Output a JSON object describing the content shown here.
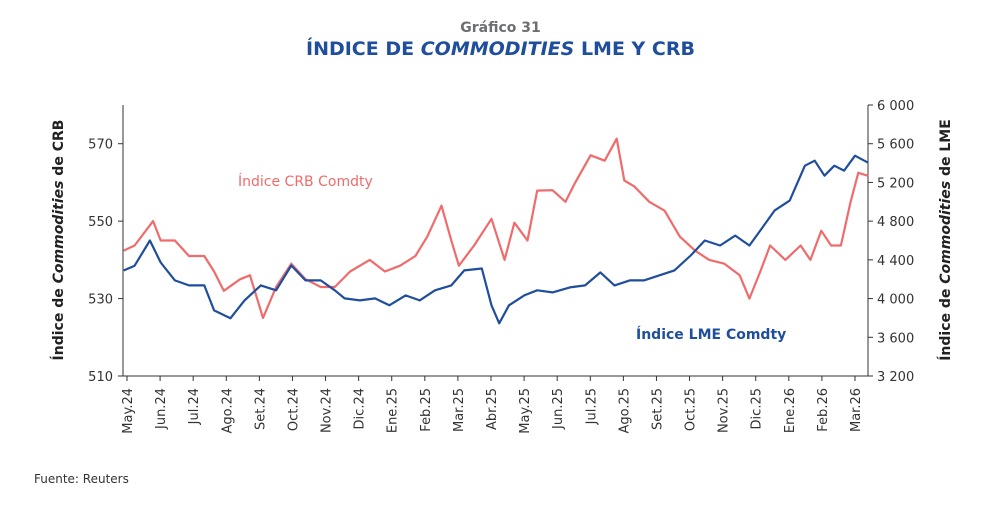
{
  "title": {
    "prefix": "Gráfico 31",
    "main_a": "ÍNDICE DE ",
    "main_italic": "COMMODITIES",
    "main_b": " LME Y CRB"
  },
  "source": "Fuente: Reuters",
  "chart_data": {
    "type": "line",
    "title": "ÍNDICE DE COMMODITIES LME Y CRB",
    "x_ticks": [
      "May.24",
      "Jun.24",
      "Jul.24",
      "Ago.24",
      "Set.24",
      "Oct.24",
      "Nov.24",
      "Dic.24",
      "Ene.25",
      "Feb.25",
      "Mar.25",
      "Abr.25",
      "May.25",
      "Jun.25",
      "Jul.25",
      "Ago.25",
      "Set.25",
      "Oct.25",
      "Nov.25",
      "Dic.25",
      "Ene.26",
      "Feb.26",
      "Mar.26"
    ],
    "xlim": [
      "2024-04-28",
      "2026-03-13"
    ],
    "y_left": {
      "label_a": "Índice de ",
      "label_italic": "Commodities",
      "label_b": " de CRB",
      "ylim": [
        510,
        580
      ],
      "ticks": [
        "510",
        "530",
        "550",
        "570"
      ],
      "tick_values": [
        510,
        530,
        550,
        570
      ]
    },
    "y_right": {
      "label_a": "Índice de ",
      "label_italic": "Commodities",
      "label_b": " de LME",
      "ylim": [
        3200,
        6000
      ],
      "ticks": [
        "3 200",
        "3 600",
        "4 000",
        "4 400",
        "4 800",
        "5 200",
        "5 600",
        "6 000"
      ],
      "tick_values": [
        3200,
        3600,
        4000,
        4400,
        4800,
        5200,
        5600,
        6000
      ]
    },
    "grid": false,
    "series": [
      {
        "name": "Índice CRB Comdty",
        "axis": "left",
        "color": "#f06b6b",
        "points": [
          [
            "2024-04-28",
            542.4
          ],
          [
            "2024-05-08",
            543.7
          ],
          [
            "2024-05-25",
            550
          ],
          [
            "2024-06-01",
            545
          ],
          [
            "2024-06-14",
            545
          ],
          [
            "2024-06-27",
            541
          ],
          [
            "2024-07-11",
            541
          ],
          [
            "2024-07-20",
            537
          ],
          [
            "2024-07-29",
            532
          ],
          [
            "2024-08-13",
            535
          ],
          [
            "2024-08-22",
            536
          ],
          [
            "2024-09-03",
            525
          ],
          [
            "2024-09-15",
            533
          ],
          [
            "2024-09-29",
            539
          ],
          [
            "2024-10-12",
            535
          ],
          [
            "2024-10-26",
            533
          ],
          [
            "2024-11-08",
            533
          ],
          [
            "2024-11-22",
            537
          ],
          [
            "2024-12-10",
            540
          ],
          [
            "2024-12-24",
            537
          ],
          [
            "2025-01-07",
            538.5
          ],
          [
            "2025-01-21",
            541
          ],
          [
            "2025-02-01",
            546
          ],
          [
            "2025-02-14",
            554
          ],
          [
            "2025-02-23",
            545
          ],
          [
            "2025-03-02",
            538.5
          ],
          [
            "2025-03-16",
            543.7
          ],
          [
            "2025-04-01",
            550.6
          ],
          [
            "2025-04-13",
            540
          ],
          [
            "2025-04-22",
            549.6
          ],
          [
            "2025-05-04",
            545
          ],
          [
            "2025-05-13",
            557.9
          ],
          [
            "2025-05-27",
            558
          ],
          [
            "2025-06-08",
            555
          ],
          [
            "2025-06-17",
            560
          ],
          [
            "2025-07-01",
            567
          ],
          [
            "2025-07-14",
            565.6
          ],
          [
            "2025-07-25",
            571.3
          ],
          [
            "2025-08-01",
            560.5
          ],
          [
            "2025-08-10",
            559
          ],
          [
            "2025-08-24",
            555
          ],
          [
            "2025-09-07",
            552.7
          ],
          [
            "2025-09-21",
            546
          ],
          [
            "2025-10-05",
            542.4
          ],
          [
            "2025-10-18",
            540
          ],
          [
            "2025-11-01",
            539
          ],
          [
            "2025-11-15",
            536
          ],
          [
            "2025-11-24",
            530
          ],
          [
            "2025-12-04",
            537
          ],
          [
            "2025-12-13",
            543.7
          ],
          [
            "2025-12-27",
            540
          ],
          [
            "2026-01-10",
            543.7
          ],
          [
            "2026-01-19",
            540
          ],
          [
            "2026-01-29",
            547.5
          ],
          [
            "2026-02-07",
            543.7
          ],
          [
            "2026-02-16",
            543.7
          ],
          [
            "2026-02-25",
            555
          ],
          [
            "2026-03-04",
            562.5
          ],
          [
            "2026-03-13",
            561.7
          ]
        ]
      },
      {
        "name": "Índice LME Comdty",
        "axis": "right",
        "color": "#1f4e9c",
        "points": [
          [
            "2024-04-28",
            4290
          ],
          [
            "2024-05-08",
            4340
          ],
          [
            "2024-05-22",
            4600
          ],
          [
            "2024-06-01",
            4373
          ],
          [
            "2024-06-14",
            4188
          ],
          [
            "2024-06-27",
            4136
          ],
          [
            "2024-07-11",
            4136
          ],
          [
            "2024-07-20",
            3878
          ],
          [
            "2024-08-04",
            3796
          ],
          [
            "2024-08-17",
            3981
          ],
          [
            "2024-09-01",
            4136
          ],
          [
            "2024-09-15",
            4085
          ],
          [
            "2024-09-29",
            4342
          ],
          [
            "2024-10-12",
            4188
          ],
          [
            "2024-10-26",
            4188
          ],
          [
            "2024-11-08",
            4085
          ],
          [
            "2024-11-17",
            4002
          ],
          [
            "2024-12-01",
            3981
          ],
          [
            "2024-12-15",
            4002
          ],
          [
            "2024-12-28",
            3930
          ],
          [
            "2025-01-12",
            4033
          ],
          [
            "2025-01-25",
            3981
          ],
          [
            "2025-02-08",
            4085
          ],
          [
            "2025-02-23",
            4136
          ],
          [
            "2025-03-07",
            4291
          ],
          [
            "2025-03-23",
            4311
          ],
          [
            "2025-04-01",
            3930
          ],
          [
            "2025-04-08",
            3744
          ],
          [
            "2025-04-17",
            3930
          ],
          [
            "2025-05-01",
            4033
          ],
          [
            "2025-05-13",
            4085
          ],
          [
            "2025-05-27",
            4064
          ],
          [
            "2025-06-12",
            4115
          ],
          [
            "2025-06-26",
            4136
          ],
          [
            "2025-07-10",
            4270
          ],
          [
            "2025-07-23",
            4136
          ],
          [
            "2025-08-06",
            4188
          ],
          [
            "2025-08-19",
            4188
          ],
          [
            "2025-09-02",
            4239
          ],
          [
            "2025-09-16",
            4291
          ],
          [
            "2025-10-01",
            4445
          ],
          [
            "2025-10-14",
            4600
          ],
          [
            "2025-10-28",
            4548
          ],
          [
            "2025-11-11",
            4651
          ],
          [
            "2025-11-24",
            4548
          ],
          [
            "2025-12-04",
            4703
          ],
          [
            "2025-12-17",
            4909
          ],
          [
            "2025-12-31",
            5012
          ],
          [
            "2026-01-14",
            5373
          ],
          [
            "2026-01-23",
            5425
          ],
          [
            "2026-02-01",
            5270
          ],
          [
            "2026-02-10",
            5373
          ],
          [
            "2026-02-19",
            5322
          ],
          [
            "2026-03-01",
            5476
          ],
          [
            "2026-03-13",
            5404
          ]
        ]
      }
    ],
    "annotations": [
      {
        "text": "Índice CRB Comdty",
        "color": "#f06b6b"
      },
      {
        "text": "Índice LME Comdty",
        "color": "#1f4e9c"
      }
    ]
  }
}
